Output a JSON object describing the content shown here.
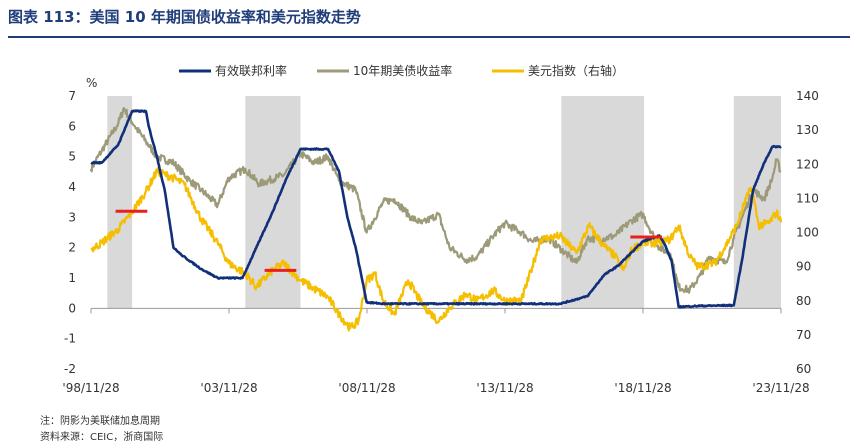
{
  "header": {
    "title": "图表 113：美国 10 年期国债收益率和美元指数走势"
  },
  "footer": {
    "note": "注：阴影为美联储加息周期",
    "source": "资料来源：CEIC，浙商国际"
  },
  "colors": {
    "fed": "#12307a",
    "t10": "#9c9a78",
    "dxy": "#f5be00",
    "shade": "#d9d9d9",
    "marker": "#e8211c"
  },
  "chart_data": {
    "type": "line",
    "y_unit": "%",
    "ylim_left": [
      -2,
      7
    ],
    "ylim_right": [
      60,
      140
    ],
    "y_ticks_left": [
      "7",
      "6",
      "5",
      "4",
      "3",
      "2",
      "1",
      "0",
      "-1",
      "-2"
    ],
    "y_ticks_right": [
      "140",
      "130",
      "120",
      "110",
      "100",
      "90",
      "80",
      "70",
      "60"
    ],
    "x_ticks": [
      "'98/11/28",
      "'03/11/28",
      "'08/11/28",
      "'13/11/28",
      "'18/11/28",
      "'23/11/28"
    ],
    "x_tick_years": [
      1998.91,
      2003.91,
      2008.91,
      2013.91,
      2018.91,
      2023.91
    ],
    "xlim": [
      1998.91,
      2023.91
    ],
    "shaded_periods": [
      [
        1999.5,
        2000.4
      ],
      [
        2004.5,
        2006.5
      ],
      [
        2015.95,
        2018.95
      ],
      [
        2022.2,
        2023.91
      ]
    ],
    "markers": [
      {
        "x0": 1999.8,
        "x1": 2000.95,
        "y_left": 3.2
      },
      {
        "x0": 2005.2,
        "x1": 2006.35,
        "y_left": 1.25
      },
      {
        "x0": 2018.45,
        "x1": 2019.6,
        "y_left": 2.35
      }
    ],
    "series": [
      {
        "name": "有效联邦利率",
        "axis": "left",
        "points": [
          [
            1998.91,
            4.8
          ],
          [
            1999.3,
            4.8
          ],
          [
            1999.9,
            5.4
          ],
          [
            2000.4,
            6.5
          ],
          [
            2000.9,
            6.5
          ],
          [
            2001.0,
            6.0
          ],
          [
            2001.3,
            5.0
          ],
          [
            2001.6,
            3.8
          ],
          [
            2001.9,
            2.0
          ],
          [
            2002.2,
            1.75
          ],
          [
            2002.9,
            1.3
          ],
          [
            2003.5,
            1.0
          ],
          [
            2004.4,
            1.0
          ],
          [
            2004.9,
            2.0
          ],
          [
            2005.5,
            3.2
          ],
          [
            2006.0,
            4.3
          ],
          [
            2006.5,
            5.25
          ],
          [
            2007.5,
            5.25
          ],
          [
            2007.9,
            4.5
          ],
          [
            2008.2,
            3.0
          ],
          [
            2008.5,
            2.0
          ],
          [
            2008.9,
            0.2
          ],
          [
            2009.5,
            0.15
          ],
          [
            2012.0,
            0.15
          ],
          [
            2015.9,
            0.15
          ],
          [
            2016.9,
            0.4
          ],
          [
            2017.5,
            1.1
          ],
          [
            2018.0,
            1.4
          ],
          [
            2018.9,
            2.2
          ],
          [
            2019.5,
            2.4
          ],
          [
            2019.7,
            2.1
          ],
          [
            2019.95,
            1.55
          ],
          [
            2020.2,
            0.05
          ],
          [
            2021.0,
            0.08
          ],
          [
            2022.2,
            0.1
          ],
          [
            2022.5,
            1.6
          ],
          [
            2022.9,
            3.9
          ],
          [
            2023.3,
            4.8
          ],
          [
            2023.6,
            5.33
          ],
          [
            2023.91,
            5.33
          ]
        ]
      },
      {
        "name": "10年期美债收益率",
        "axis": "left",
        "points": [
          [
            1998.91,
            4.6
          ],
          [
            1999.3,
            5.2
          ],
          [
            1999.9,
            6.1
          ],
          [
            2000.1,
            6.6
          ],
          [
            2000.5,
            6.0
          ],
          [
            2000.9,
            5.5
          ],
          [
            2001.3,
            5.0
          ],
          [
            2001.9,
            4.8
          ],
          [
            2002.5,
            4.2
          ],
          [
            2002.9,
            3.9
          ],
          [
            2003.5,
            3.4
          ],
          [
            2003.9,
            4.3
          ],
          [
            2004.5,
            4.6
          ],
          [
            2005.0,
            4.1
          ],
          [
            2005.9,
            4.4
          ],
          [
            2006.5,
            5.1
          ],
          [
            2007.0,
            4.8
          ],
          [
            2007.5,
            5.0
          ],
          [
            2007.9,
            4.2
          ],
          [
            2008.5,
            3.9
          ],
          [
            2008.9,
            2.5
          ],
          [
            2009.5,
            3.5
          ],
          [
            2009.9,
            3.6
          ],
          [
            2010.5,
            3.0
          ],
          [
            2010.9,
            2.8
          ],
          [
            2011.5,
            3.1
          ],
          [
            2011.9,
            2.0
          ],
          [
            2012.5,
            1.6
          ],
          [
            2012.9,
            1.7
          ],
          [
            2013.5,
            2.4
          ],
          [
            2013.9,
            2.8
          ],
          [
            2014.5,
            2.5
          ],
          [
            2014.9,
            2.2
          ],
          [
            2015.5,
            2.3
          ],
          [
            2016.5,
            1.5
          ],
          [
            2016.9,
            2.3
          ],
          [
            2017.5,
            2.3
          ],
          [
            2017.9,
            2.4
          ],
          [
            2018.5,
            2.9
          ],
          [
            2018.9,
            3.1
          ],
          [
            2019.5,
            2.0
          ],
          [
            2019.9,
            1.8
          ],
          [
            2020.2,
            0.7
          ],
          [
            2020.6,
            0.6
          ],
          [
            2021.0,
            1.1
          ],
          [
            2021.3,
            1.7
          ],
          [
            2021.9,
            1.5
          ],
          [
            2022.2,
            2.3
          ],
          [
            2022.5,
            3.0
          ],
          [
            2022.9,
            3.9
          ],
          [
            2023.3,
            3.6
          ],
          [
            2023.6,
            4.3
          ],
          [
            2023.75,
            4.9
          ],
          [
            2023.91,
            4.5
          ]
        ]
      },
      {
        "name": "美元指数（右轴）",
        "axis": "right",
        "points": [
          [
            1998.91,
            95
          ],
          [
            1999.3,
            97
          ],
          [
            1999.9,
            101
          ],
          [
            2000.4,
            106
          ],
          [
            2000.9,
            112
          ],
          [
            2001.3,
            118
          ],
          [
            2001.6,
            117
          ],
          [
            2001.9,
            116
          ],
          [
            2002.3,
            114
          ],
          [
            2002.6,
            109
          ],
          [
            2002.9,
            104
          ],
          [
            2003.5,
            97
          ],
          [
            2003.9,
            91
          ],
          [
            2004.5,
            88
          ],
          [
            2004.9,
            84
          ],
          [
            2005.5,
            89
          ],
          [
            2005.9,
            91
          ],
          [
            2006.5,
            86
          ],
          [
            2006.9,
            84
          ],
          [
            2007.5,
            81
          ],
          [
            2007.9,
            76
          ],
          [
            2008.3,
            72
          ],
          [
            2008.6,
            74
          ],
          [
            2008.9,
            86
          ],
          [
            2009.2,
            88
          ],
          [
            2009.5,
            80
          ],
          [
            2009.9,
            76
          ],
          [
            2010.4,
            86
          ],
          [
            2010.9,
            79
          ],
          [
            2011.5,
            74
          ],
          [
            2011.9,
            78
          ],
          [
            2012.5,
            82
          ],
          [
            2012.9,
            80
          ],
          [
            2013.5,
            83
          ],
          [
            2013.9,
            80
          ],
          [
            2014.5,
            80
          ],
          [
            2014.9,
            90
          ],
          [
            2015.2,
            98
          ],
          [
            2015.9,
            99
          ],
          [
            2016.5,
            94
          ],
          [
            2016.95,
            102
          ],
          [
            2017.5,
            96
          ],
          [
            2017.9,
            93
          ],
          [
            2018.2,
            89
          ],
          [
            2018.5,
            95
          ],
          [
            2018.9,
            97
          ],
          [
            2019.5,
            97
          ],
          [
            2019.9,
            98
          ],
          [
            2020.2,
            102
          ],
          [
            2020.6,
            93
          ],
          [
            2020.9,
            90
          ],
          [
            2021.5,
            91
          ],
          [
            2021.9,
            96
          ],
          [
            2022.3,
            102
          ],
          [
            2022.7,
            111
          ],
          [
            2022.85,
            113
          ],
          [
            2023.1,
            102
          ],
          [
            2023.5,
            103
          ],
          [
            2023.75,
            106
          ],
          [
            2023.91,
            103
          ]
        ]
      }
    ]
  }
}
